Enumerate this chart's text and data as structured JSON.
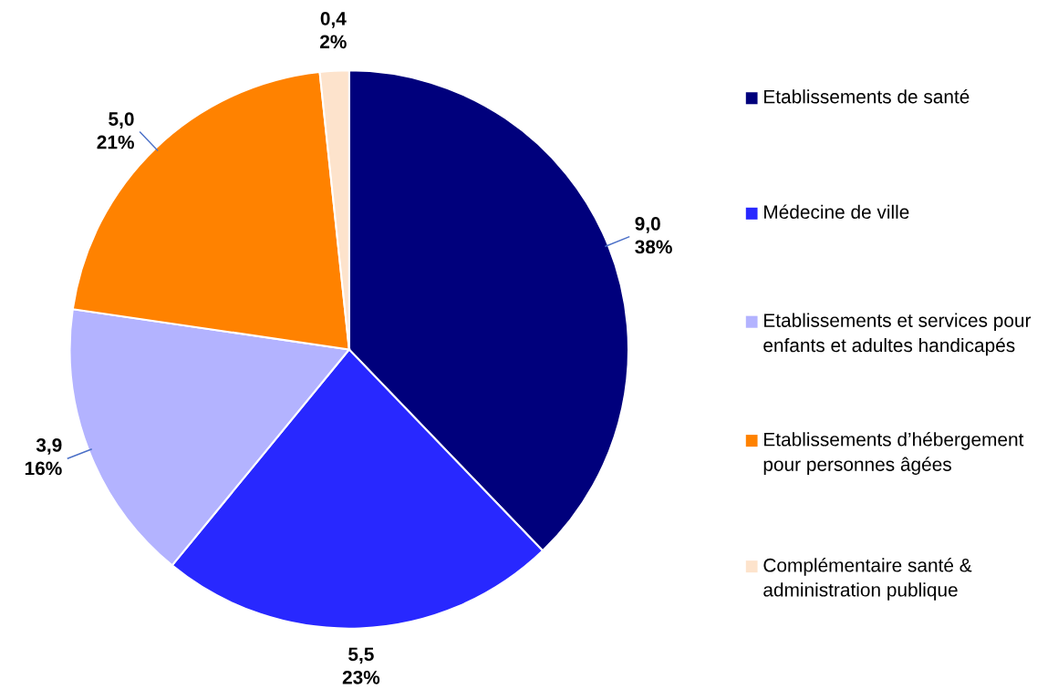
{
  "chart_data": {
    "type": "pie",
    "categories": [
      "Etablissements de santé",
      "Médecine de ville",
      "Etablissements et services pour enfants et adultes handicapés",
      "Etablissements d’hébergement pour personnes âgées",
      "Complémentaire santé & administration publique"
    ],
    "values": [
      9.0,
      5.5,
      3.9,
      5.0,
      0.4
    ],
    "value_labels": [
      "9,0\n38%",
      "5,5\n23%",
      "3,9\n16%",
      "5,0\n21%",
      "0,4\n2%"
    ],
    "colors": [
      "#00007c",
      "#2828ff",
      "#b3b3ff",
      "#ff8200",
      "#fde3cc"
    ],
    "legend": "right"
  }
}
